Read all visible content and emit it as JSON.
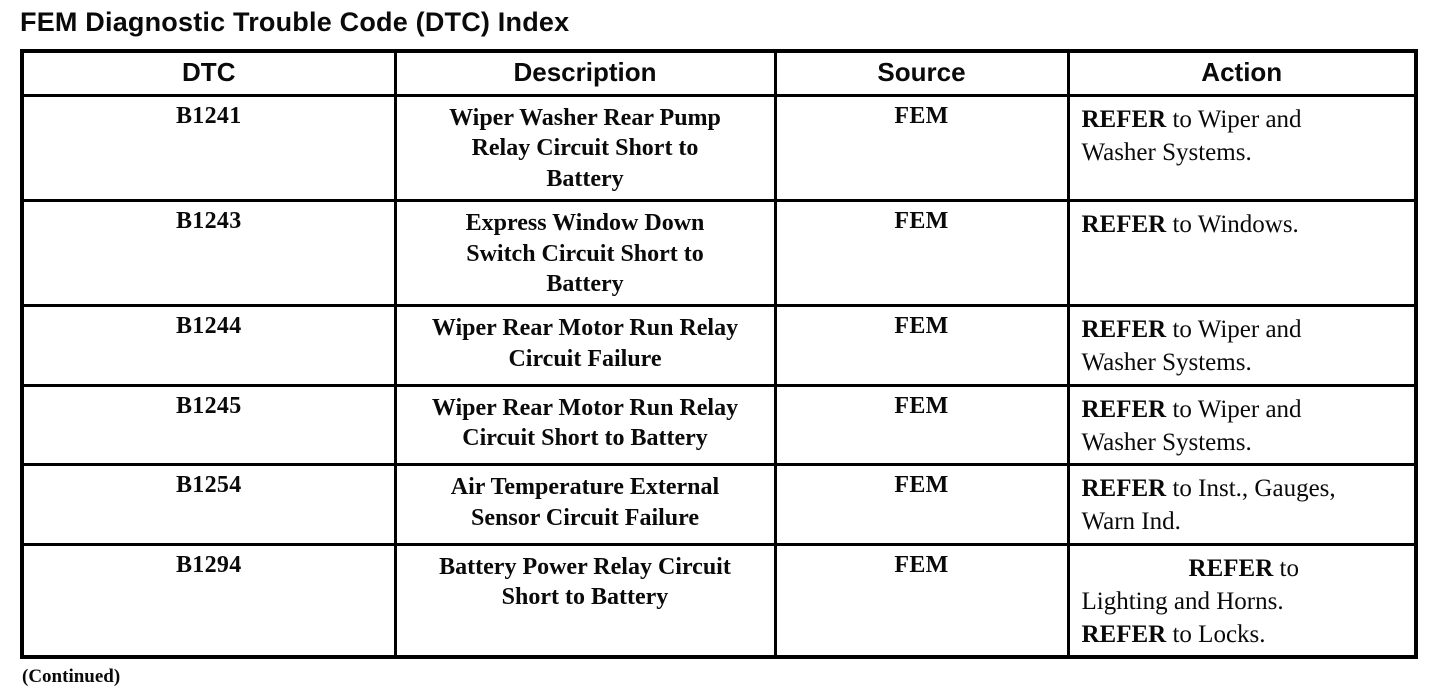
{
  "page": {
    "title": "FEM Diagnostic Trouble Code (DTC) Index",
    "continued_note": "(Continued)"
  },
  "colors": {
    "paper": "#ffffff",
    "ink": "#0a0a0a",
    "table_border": "#000000"
  },
  "table": {
    "columns": [
      {
        "key": "dtc",
        "label": "DTC"
      },
      {
        "key": "description",
        "label": "Description"
      },
      {
        "key": "source",
        "label": "Source"
      },
      {
        "key": "action",
        "label": "Action"
      }
    ],
    "rows": [
      {
        "dtc": "B1241",
        "description": "Wiper Washer Rear Pump\nRelay Circuit Short to\nBattery",
        "source": "FEM",
        "action_lines": [
          {
            "align": "left",
            "segments": [
              {
                "text": "REFER",
                "bold": true
              },
              {
                "text": " to Wiper and",
                "bold": false
              }
            ]
          },
          {
            "align": "left",
            "segments": [
              {
                "text": "Washer Systems.",
                "bold": false
              }
            ]
          }
        ]
      },
      {
        "dtc": "B1243",
        "description": "Express Window Down\nSwitch Circuit Short to\nBattery",
        "source": "FEM",
        "action_lines": [
          {
            "align": "left",
            "segments": [
              {
                "text": "REFER",
                "bold": true
              },
              {
                "text": " to Windows.",
                "bold": false
              }
            ]
          }
        ]
      },
      {
        "dtc": "B1244",
        "description": "Wiper Rear Motor Run Relay\nCircuit Failure",
        "source": "FEM",
        "action_lines": [
          {
            "align": "left",
            "segments": [
              {
                "text": "REFER",
                "bold": true
              },
              {
                "text": " to Wiper and",
                "bold": false
              }
            ]
          },
          {
            "align": "left",
            "segments": [
              {
                "text": "Washer Systems.",
                "bold": false
              }
            ]
          }
        ]
      },
      {
        "dtc": "B1245",
        "description": "Wiper Rear Motor Run Relay\nCircuit Short to Battery",
        "source": "FEM",
        "action_lines": [
          {
            "align": "left",
            "segments": [
              {
                "text": "REFER",
                "bold": true
              },
              {
                "text": " to Wiper and",
                "bold": false
              }
            ]
          },
          {
            "align": "left",
            "segments": [
              {
                "text": "Washer Systems.",
                "bold": false
              }
            ]
          }
        ]
      },
      {
        "dtc": "B1254",
        "description": "Air Temperature External\nSensor Circuit Failure",
        "source": "FEM",
        "action_lines": [
          {
            "align": "left",
            "segments": [
              {
                "text": "REFER",
                "bold": true
              },
              {
                "text": " to Inst., Gauges,",
                "bold": false
              }
            ]
          },
          {
            "align": "left",
            "segments": [
              {
                "text": "Warn Ind.",
                "bold": false
              }
            ]
          }
        ]
      },
      {
        "dtc": "B1294",
        "description": "Battery Power Relay Circuit\nShort to Battery",
        "source": "FEM",
        "action_lines": [
          {
            "align": "center",
            "segments": [
              {
                "text": "REFER",
                "bold": true
              },
              {
                "text": " to",
                "bold": false
              }
            ]
          },
          {
            "align": "left",
            "segments": [
              {
                "text": "Lighting and Horns.",
                "bold": false
              }
            ]
          },
          {
            "align": "left",
            "segments": [
              {
                "text": "REFER",
                "bold": true
              },
              {
                "text": " to Locks.",
                "bold": false
              }
            ]
          }
        ]
      }
    ]
  }
}
